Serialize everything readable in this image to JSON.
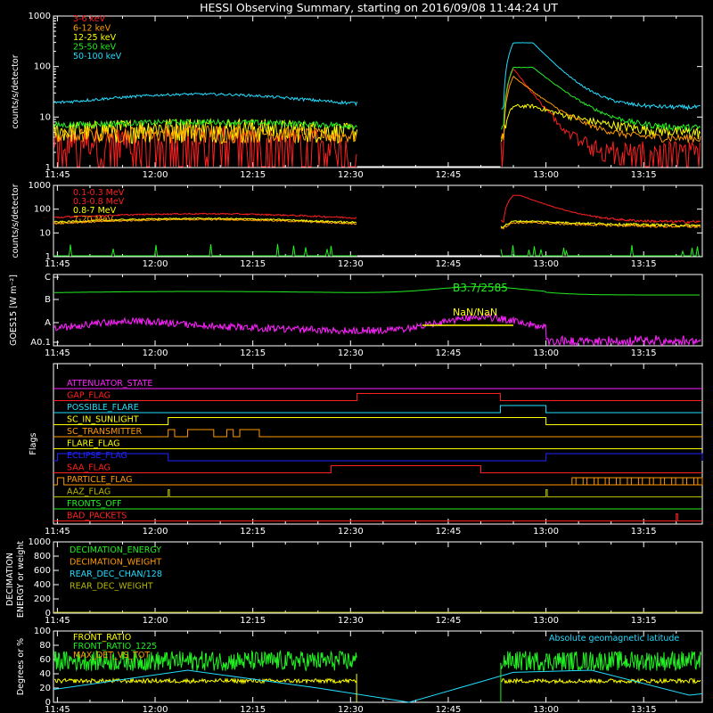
{
  "title": "HESSI Observing Summary, starting on 2016/09/08 11:44:24 UT",
  "time_ticks": [
    "11:45",
    "12:00",
    "12:15",
    "12:30",
    "12:45",
    "13:00",
    "13:15"
  ],
  "colors": {
    "red": "#ff2020",
    "orange": "#ff9a00",
    "yellow": "#ffff00",
    "green": "#22ee22",
    "cyan": "#22ddff",
    "magenta": "#ff22ff",
    "blue": "#2222ff",
    "olive": "#b8b800",
    "white": "#ffffff",
    "black": "#000000"
  },
  "chart_data": [
    {
      "type": "line",
      "panel": "hxr",
      "ylabel": "counts/s/detector",
      "ylog": true,
      "ylim": [
        1,
        1000
      ],
      "ytick_labels": [
        "1",
        "10",
        "100",
        "1000"
      ],
      "time_range_utc": [
        "11:44:24",
        "13:24:00"
      ],
      "data_gap_utc": [
        "12:31",
        "12:53"
      ],
      "legend_position": "top-left",
      "series": [
        {
          "name": "3-6 keV",
          "color": "#ff2020",
          "note": "noisy background ~1-5, peak ~100 at 12:54"
        },
        {
          "name": "6-12 keV",
          "color": "#ff9a00",
          "note": "background ~3-6, peak ~70"
        },
        {
          "name": "12-25 keV",
          "color": "#ffff00",
          "note": "background ~4-8, rise to ~15 at 12:54"
        },
        {
          "name": "25-50 keV",
          "color": "#22ee22",
          "note": "background ~5-8, peak ~100 at 12:58"
        },
        {
          "name": "50-100 keV",
          "color": "#22ddff",
          "note": "background ~14-28, peak ~300 at 12:58"
        }
      ]
    },
    {
      "type": "line",
      "panel": "gamma",
      "ylabel": "counts/s/detector",
      "ylog": true,
      "ylim": [
        1,
        1000
      ],
      "ytick_labels": [
        "1",
        "10",
        "100",
        "1000"
      ],
      "legend_position": "top-left",
      "series": [
        {
          "name": "0.1-0.3 MeV",
          "color": "#ff2020",
          "note": "~30-60 background, peak ~400 at 12:57"
        },
        {
          "name": "0.3-0.8 MeV",
          "color": "#ff2020"
        },
        {
          "name": "0.8-7 MeV",
          "color": "#ffff00",
          "note": "~15-45"
        },
        {
          "name": "7-20 MeV",
          "color": "#ff9a00",
          "note": "~15-40"
        },
        {
          "name": "",
          "color": "#22ee22",
          "note": "sparse spikes ~1-3"
        }
      ]
    },
    {
      "type": "line",
      "panel": "goes",
      "ylabel": "GOES15 [W m⁻²]",
      "ytick_labels": [
        "A0.1",
        "A",
        "B",
        "C"
      ],
      "series": [
        {
          "name": "GOES high",
          "color": "#22ee22",
          "label": "B3.7/2585",
          "note": "flat near B, bump at 12:50"
        },
        {
          "name": "GOES low",
          "color": "#ff22ff",
          "label": "NaN/NaN",
          "note": "noisy A0.1-A level"
        }
      ],
      "yellow_segment_utc": [
        "12:41",
        "12:55"
      ]
    },
    {
      "type": "line",
      "panel": "flags",
      "ylabel": "Flags",
      "flags": [
        {
          "name": "ATTENUATOR_STATE",
          "color": "#ff22ff",
          "segments": []
        },
        {
          "name": "GAP_FLAG",
          "color": "#ff2020",
          "segments": [
            [
              "12:31",
              "12:53"
            ]
          ]
        },
        {
          "name": "POSSIBLE_FLARE",
          "color": "#22ddff",
          "segments": [
            [
              "12:53",
              "13:00"
            ]
          ]
        },
        {
          "name": "SC_IN_SUNLIGHT",
          "color": "#ffff00",
          "segments": [
            [
              "12:02",
              "13:00"
            ]
          ]
        },
        {
          "name": "SC_TRANSMITTER",
          "color": "#ff9a00",
          "segments": [
            [
              "12:02",
              "12:15"
            ]
          ]
        },
        {
          "name": "FLARE_FLAG",
          "color": "#ffff00",
          "segments": []
        },
        {
          "name": "ECLIPSE_FLAG",
          "color": "#2222ff",
          "segments": [
            [
              "11:45",
              "12:02"
            ],
            [
              "13:00",
              "13:24"
            ]
          ]
        },
        {
          "name": "SAA_FLAG",
          "color": "#ff2020",
          "segments": [
            [
              "12:27",
              "12:50"
            ]
          ]
        },
        {
          "name": "PARTICLE_FLAG",
          "color": "#ff9a00",
          "segments": [
            [
              "11:45",
              "11:46"
            ],
            [
              "13:04",
              "13:24"
            ]
          ]
        },
        {
          "name": "AAZ_FLAG",
          "color": "#b8b800",
          "segments": [
            [
              "12:02",
              "12:02"
            ],
            [
              "13:00",
              "13:00"
            ]
          ]
        },
        {
          "name": "FRONTS_OFF",
          "color": "#22ee22",
          "segments": []
        },
        {
          "name": "BAD_PACKETS",
          "color": "#ff2020",
          "segments": [
            [
              "13:20",
              "13:20"
            ]
          ]
        }
      ]
    },
    {
      "type": "line",
      "panel": "decimation",
      "ylabel": "DECIMATION ENERGY or weight",
      "ylim": [
        0,
        1000
      ],
      "ytick_labels": [
        "0",
        "200",
        "400",
        "600",
        "800",
        "1000"
      ],
      "series": [
        {
          "name": "DECIMATION_ENERGY",
          "color": "#22ee22"
        },
        {
          "name": "DECIMATION_WEIGHT",
          "color": "#ff9a00"
        },
        {
          "name": "REAR_DEC_CHAN/128",
          "color": "#22ddff"
        },
        {
          "name": "REAR_DEC_WEIGHT",
          "color": "#b8b800"
        }
      ]
    },
    {
      "type": "line",
      "panel": "ratio",
      "ylabel": "Degrees or %",
      "ylim": [
        0,
        100
      ],
      "ytick_labels": [
        "0",
        "20",
        "40",
        "60",
        "80",
        "100"
      ],
      "annotation": "Absolute geomagnetic latitude",
      "series": [
        {
          "name": "FRONT_RATIO",
          "color": "#ffff00",
          "note": "~30"
        },
        {
          "name": "FRONT_RATIO_1225",
          "color": "#22ee22",
          "note": "~45-75 noisy"
        },
        {
          "name": "MAX_DET_VS_TOT",
          "color": "#ff9a00"
        },
        {
          "name": "Absolute geomagnetic latitude",
          "color": "#22ddff",
          "note": "0-40 triangular wave"
        }
      ]
    }
  ]
}
